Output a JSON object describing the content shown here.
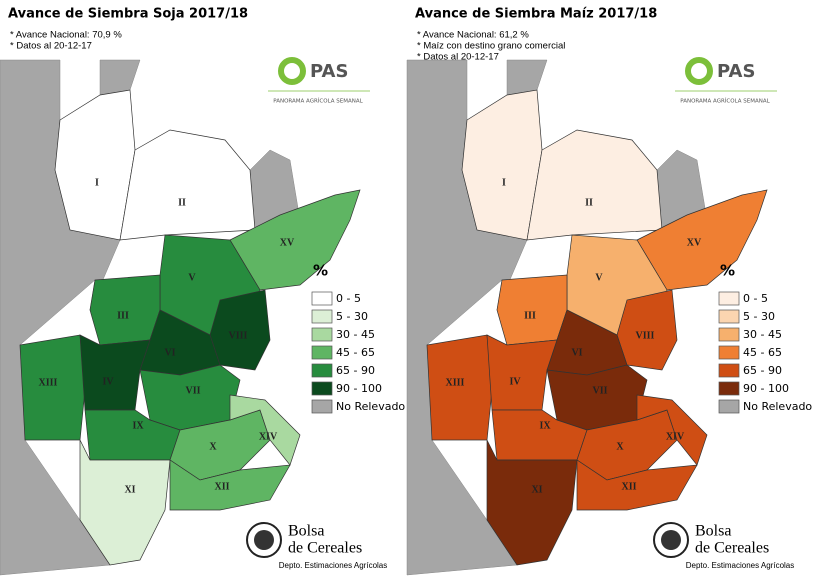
{
  "panels": [
    {
      "title": "Avance de Siembra Soja 2017/18",
      "notes": [
        "* Avance Nacional: 70,9 %",
        "* Datos al 20-12-17"
      ],
      "logo": {
        "name": "PAS",
        "tagline": "PANORAMA AGRÍCOLA SEMANAL"
      },
      "legend": {
        "title": "%",
        "entries": [
          {
            "label": "0 - 5",
            "color": "#ffffff"
          },
          {
            "label": "5 - 30",
            "color": "#dcefd6"
          },
          {
            "label": "30 - 45",
            "color": "#a9d9a0"
          },
          {
            "label": "45 - 65",
            "color": "#5fb563"
          },
          {
            "label": "65 - 90",
            "color": "#278c3e"
          },
          {
            "label": "90 - 100",
            "color": "#0b4a1e"
          },
          {
            "label": "No Relevado",
            "color": "#a6a6a6"
          }
        ]
      },
      "regions": [
        {
          "label": "I",
          "color": "#ffffff"
        },
        {
          "label": "II",
          "color": "#ffffff"
        },
        {
          "label": "XV",
          "color": "#5fb563"
        },
        {
          "label": "V",
          "color": "#278c3e"
        },
        {
          "label": "III",
          "color": "#278c3e"
        },
        {
          "label": "VIII",
          "color": "#0b4a1e"
        },
        {
          "label": "VI",
          "color": "#0b4a1e"
        },
        {
          "label": "XIII",
          "color": "#278c3e"
        },
        {
          "label": "IV",
          "color": "#0b4a1e"
        },
        {
          "label": "VII",
          "color": "#278c3e"
        },
        {
          "label": "IX",
          "color": "#278c3e"
        },
        {
          "label": "X",
          "color": "#5fb563"
        },
        {
          "label": "XIV",
          "color": "#a9d9a0"
        },
        {
          "label": "XI",
          "color": "#dcefd6"
        },
        {
          "label": "XII",
          "color": "#5fb563"
        }
      ],
      "footer": {
        "name_lines": [
          "Bolsa",
          "de Cereales"
        ],
        "dept": "Depto. Estimaciones Agrícolas"
      }
    },
    {
      "title": "Avance de Siembra Maíz 2017/18",
      "notes": [
        "* Avance Nacional: 61,2 %",
        "* Maíz con destino grano comercial",
        "* Datos al 20-12-17"
      ],
      "logo": {
        "name": "PAS",
        "tagline": "PANORAMA AGRÍCOLA SEMANAL"
      },
      "legend": {
        "title": "%",
        "entries": [
          {
            "label": "0 - 5",
            "color": "#fdeee2"
          },
          {
            "label": "5 - 30",
            "color": "#fbd5b0"
          },
          {
            "label": "30 - 45",
            "color": "#f6b06d"
          },
          {
            "label": "45 - 65",
            "color": "#ef7f33"
          },
          {
            "label": "65 - 90",
            "color": "#cf4e14"
          },
          {
            "label": "90 - 100",
            "color": "#7a2b0b"
          },
          {
            "label": "No Relevado",
            "color": "#a6a6a6"
          }
        ]
      },
      "regions": [
        {
          "label": "I",
          "color": "#fdeee2"
        },
        {
          "label": "II",
          "color": "#fdeee2"
        },
        {
          "label": "XV",
          "color": "#ef7f33"
        },
        {
          "label": "V",
          "color": "#f6b06d"
        },
        {
          "label": "III",
          "color": "#ef7f33"
        },
        {
          "label": "VIII",
          "color": "#cf4e14"
        },
        {
          "label": "VI",
          "color": "#7a2b0b"
        },
        {
          "label": "XIII",
          "color": "#cf4e14"
        },
        {
          "label": "IV",
          "color": "#cf4e14"
        },
        {
          "label": "VII",
          "color": "#7a2b0b"
        },
        {
          "label": "IX",
          "color": "#cf4e14"
        },
        {
          "label": "X",
          "color": "#cf4e14"
        },
        {
          "label": "XIV",
          "color": "#cf4e14"
        },
        {
          "label": "XI",
          "color": "#7a2b0b"
        },
        {
          "label": "XII",
          "color": "#cf4e14"
        }
      ],
      "footer": {
        "name_lines": [
          "Bolsa",
          "de Cereales"
        ],
        "dept": "Depto. Estimaciones Agrícolas"
      }
    }
  ]
}
